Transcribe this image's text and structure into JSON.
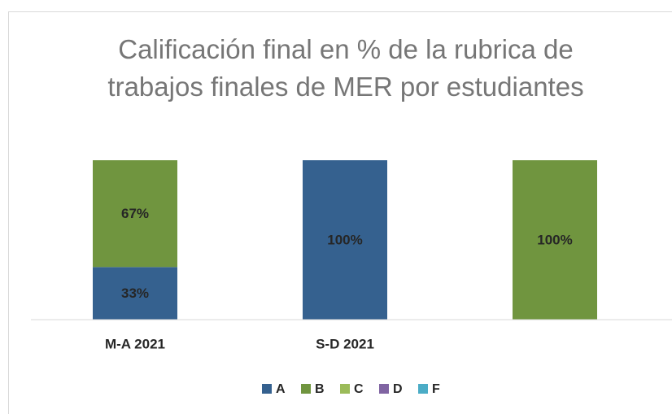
{
  "chart_data": {
    "type": "bar",
    "stacked": true,
    "title": "Calificación final en % de la rubrica de trabajos finales de MER por estudiantes",
    "categories": [
      "M-A 2021",
      "S-D 2021",
      null
    ],
    "series": [
      {
        "name": "A",
        "color": "#35618f",
        "values": [
          33,
          100,
          0
        ],
        "value_labels": [
          "33%",
          "100%",
          null
        ]
      },
      {
        "name": "B",
        "color": "#70953f",
        "values": [
          67,
          0,
          100
        ],
        "value_labels": [
          "67%",
          null,
          "100%"
        ]
      },
      {
        "name": "C",
        "color": "#9bbb59",
        "values": [
          0,
          0,
          0
        ]
      },
      {
        "name": "D",
        "color": "#8064a2",
        "values": [
          0,
          0,
          0
        ]
      },
      {
        "name": "F",
        "color": "#4bacc6",
        "values": [
          0,
          0,
          0
        ]
      }
    ],
    "ylim": [
      0,
      100
    ],
    "legend": "bottom"
  }
}
